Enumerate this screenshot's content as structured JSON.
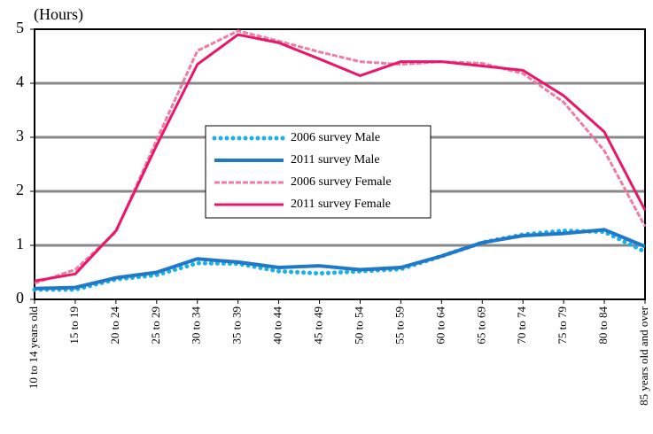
{
  "chart_data": {
    "type": "line",
    "y_axis_label": "(Hours)",
    "categories": [
      "10 to 14 years old",
      "15 to 19",
      "20 to 24",
      "25 to 29",
      "30 to 34",
      "35 to 39",
      "40 to 44",
      "45 to 49",
      "50 to 54",
      "55 to 59",
      "60 to 64",
      "65 to 69",
      "70 to 74",
      "75 to 79",
      "80 to 84",
      "85 years old and over"
    ],
    "series": [
      {
        "name": "2006 survey Male",
        "color": "#1ab0e8",
        "style": "dotted",
        "values": [
          0.18,
          0.18,
          0.37,
          0.45,
          0.67,
          0.66,
          0.52,
          0.48,
          0.52,
          0.56,
          0.8,
          1.05,
          1.2,
          1.27,
          1.25,
          0.88
        ]
      },
      {
        "name": "2011 survey Male",
        "color": "#1f78c8",
        "style": "solid",
        "values": [
          0.2,
          0.22,
          0.4,
          0.5,
          0.75,
          0.69,
          0.59,
          0.62,
          0.55,
          0.59,
          0.8,
          1.05,
          1.18,
          1.22,
          1.29,
          0.98
        ]
      },
      {
        "name": "2006 survey Female",
        "color": "#f07ca0",
        "style": "dashed",
        "values": [
          0.3,
          0.55,
          1.25,
          2.95,
          4.6,
          4.97,
          4.78,
          4.58,
          4.4,
          4.35,
          4.4,
          4.37,
          4.18,
          3.65,
          2.75,
          1.35
        ]
      },
      {
        "name": "2011 survey Female",
        "color": "#e8176b",
        "style": "solid",
        "values": [
          0.34,
          0.47,
          1.27,
          2.85,
          4.35,
          4.9,
          4.75,
          4.45,
          4.14,
          4.4,
          4.4,
          4.32,
          4.24,
          3.77,
          3.1,
          1.65
        ]
      }
    ],
    "ylim": [
      0,
      5
    ],
    "yticks": [
      0,
      1,
      2,
      3,
      4,
      5
    ],
    "grid": true
  }
}
